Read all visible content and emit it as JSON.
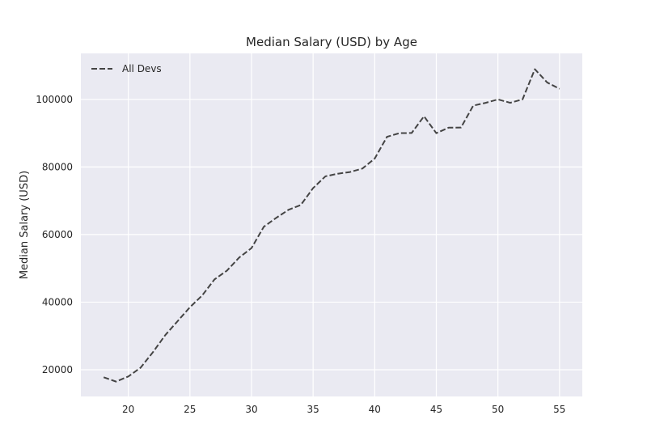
{
  "chart_data": {
    "type": "line",
    "title": "Median Salary (USD) by Age",
    "xlabel": "",
    "ylabel": "Median Salary (USD)",
    "xlim": [
      16.15,
      56.85
    ],
    "ylim": [
      12100,
      113600
    ],
    "x_ticks": [
      20,
      25,
      30,
      35,
      40,
      45,
      50,
      55
    ],
    "y_ticks": [
      20000,
      40000,
      60000,
      80000,
      100000
    ],
    "grid": true,
    "legend_position": "top-left",
    "background_color": "#eaeaf2",
    "grid_color": "#ffffff",
    "series": [
      {
        "name": "All Devs",
        "color": "#444444",
        "line_style": "dashed",
        "x": [
          18,
          19,
          20,
          21,
          22,
          23,
          24,
          25,
          26,
          27,
          28,
          29,
          30,
          31,
          32,
          33,
          34,
          35,
          36,
          37,
          38,
          39,
          40,
          41,
          42,
          43,
          44,
          45,
          46,
          47,
          48,
          49,
          50,
          51,
          52,
          53,
          54,
          55
        ],
        "values": [
          17784,
          16500,
          18012,
          20628,
          25206,
          30252,
          34368,
          38496,
          42000,
          46752,
          49320,
          53200,
          56000,
          62316,
          64928,
          67317,
          68748,
          73752,
          77232,
          78000,
          78508,
          79536,
          82488,
          88935,
          90000,
          90056,
          95000,
          90000,
          91633,
          91660,
          98150,
          98964,
          100000,
          98988,
          100000,
          108923,
          105000,
          103117
        ]
      }
    ]
  }
}
